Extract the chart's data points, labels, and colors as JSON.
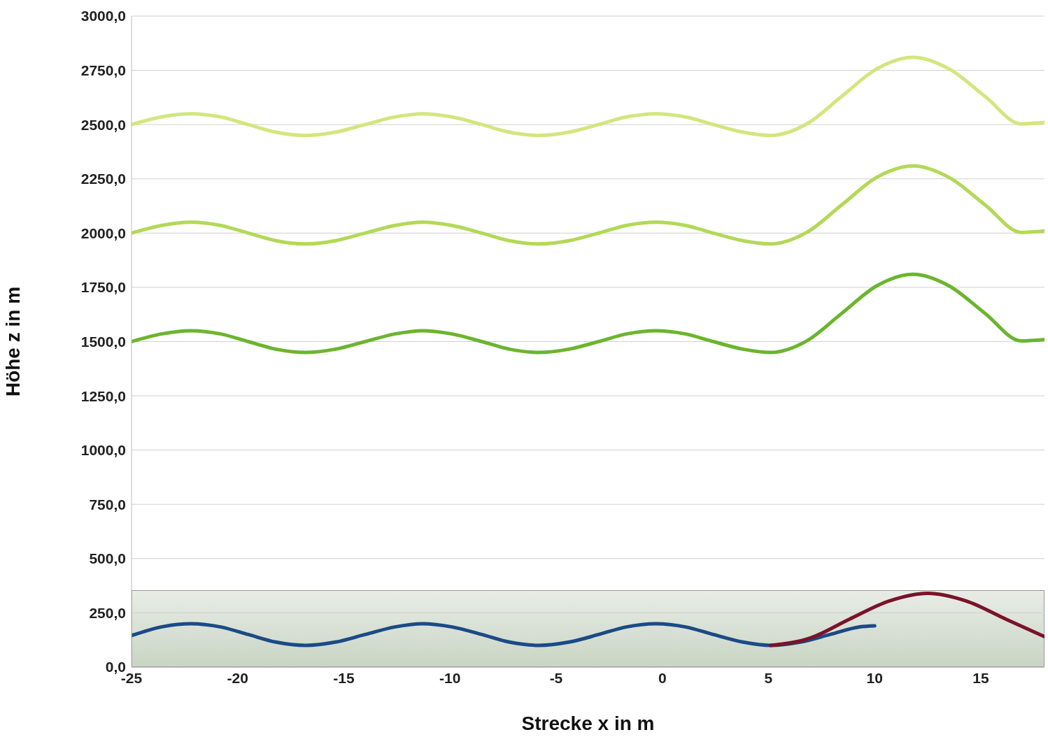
{
  "chart_data": {
    "type": "line",
    "xlabel": "Strecke x in m",
    "ylabel": "Höhe z in m",
    "xlim": [
      -25,
      18
    ],
    "xticks": [
      -25,
      -20,
      -15,
      -10,
      -5,
      0,
      5,
      10,
      15
    ],
    "ylim": [
      0,
      3000
    ],
    "yticks": [
      {
        "value": 0,
        "label": "0,0"
      },
      {
        "value": 250,
        "label": "250,0"
      },
      {
        "value": 500,
        "label": "500,0"
      },
      {
        "value": 750,
        "label": "750,0"
      },
      {
        "value": 1000,
        "label": "1000,0"
      },
      {
        "value": 1250,
        "label": "1250,0"
      },
      {
        "value": 1500,
        "label": "1500,0"
      },
      {
        "value": 1750,
        "label": "1750,0"
      },
      {
        "value": 2000,
        "label": "2000,0"
      },
      {
        "value": 2250,
        "label": "2250,0"
      },
      {
        "value": 2500,
        "label": "2500,0"
      },
      {
        "value": 2750,
        "label": "2750,0"
      },
      {
        "value": 3000,
        "label": "3000,0"
      }
    ],
    "grid": "y",
    "marker": "none",
    "line_style": "solid",
    "series": [
      {
        "color": "#d3e67e",
        "x": [
          -25,
          -23.6,
          -22.2,
          -20.8,
          -19.5,
          -18.2,
          -16.8,
          -15.4,
          -14,
          -12.6,
          -11.3,
          -9.9,
          -8.5,
          -7.2,
          -5.8,
          -4.4,
          -3,
          -1.7,
          -0.3,
          1.1,
          2.4,
          3.8,
          5.1,
          6.8,
          8.45,
          10.1,
          11.8,
          13.5,
          15.2,
          16.9,
          18
        ],
        "values": [
          2500,
          2535,
          2550,
          2535,
          2500,
          2465,
          2450,
          2465,
          2500,
          2535,
          2550,
          2535,
          2500,
          2465,
          2450,
          2465,
          2500,
          2535,
          2550,
          2535,
          2500,
          2465,
          2450,
          2503,
          2630,
          2757,
          2810,
          2757,
          2630,
          2503,
          2510
        ]
      },
      {
        "color": "#b2d957",
        "x": [
          -25,
          -23.6,
          -22.2,
          -20.8,
          -19.5,
          -18.2,
          -16.8,
          -15.4,
          -14,
          -12.6,
          -11.3,
          -9.9,
          -8.5,
          -7.2,
          -5.8,
          -4.4,
          -3,
          -1.7,
          -0.3,
          1.1,
          2.4,
          3.8,
          5.1,
          6.8,
          8.45,
          10.1,
          11.8,
          13.5,
          15.2,
          16.9,
          18
        ],
        "values": [
          2000,
          2035,
          2050,
          2035,
          2000,
          1965,
          1950,
          1965,
          2000,
          2035,
          2050,
          2035,
          2000,
          1965,
          1950,
          1965,
          2000,
          2035,
          2050,
          2035,
          2000,
          1965,
          1950,
          2003,
          2130,
          2257,
          2310,
          2257,
          2130,
          2003,
          2010
        ]
      },
      {
        "color": "#6bb52e",
        "x": [
          -25,
          -23.6,
          -22.2,
          -20.8,
          -19.5,
          -18.2,
          -16.8,
          -15.4,
          -14,
          -12.6,
          -11.3,
          -9.9,
          -8.5,
          -7.2,
          -5.8,
          -4.4,
          -3,
          -1.7,
          -0.3,
          1.1,
          2.4,
          3.8,
          5.1,
          6.8,
          8.45,
          10.1,
          11.8,
          13.5,
          15.2,
          16.9,
          18
        ],
        "values": [
          1500,
          1535,
          1550,
          1535,
          1500,
          1465,
          1450,
          1465,
          1500,
          1535,
          1550,
          1535,
          1500,
          1465,
          1450,
          1465,
          1500,
          1535,
          1550,
          1535,
          1500,
          1465,
          1450,
          1503,
          1630,
          1757,
          1810,
          1757,
          1630,
          1503,
          1510
        ]
      },
      {
        "color": "#1b4a86",
        "x": [
          -25,
          -23.6,
          -22.2,
          -20.8,
          -19.5,
          -18.2,
          -16.8,
          -15.4,
          -14,
          -12.6,
          -11.3,
          -9.9,
          -8.5,
          -7.2,
          -5.8,
          -4.4,
          -3,
          -1.7,
          -0.3,
          1.1,
          2.4,
          3.8,
          5.1,
          6.5,
          7.9,
          9.3,
          10
        ],
        "values": [
          145,
          185,
          200,
          185,
          150,
          115,
          100,
          115,
          150,
          185,
          200,
          185,
          150,
          115,
          100,
          115,
          150,
          185,
          200,
          185,
          150,
          115,
          100,
          115,
          150,
          185,
          190
        ]
      },
      {
        "color": "#7a1329",
        "x": [
          5.1,
          7,
          8.8,
          10.7,
          12.5,
          14.3,
          16.2,
          18
        ],
        "values": [
          100,
          135,
          220,
          305,
          340,
          305,
          220,
          140
        ]
      }
    ]
  }
}
